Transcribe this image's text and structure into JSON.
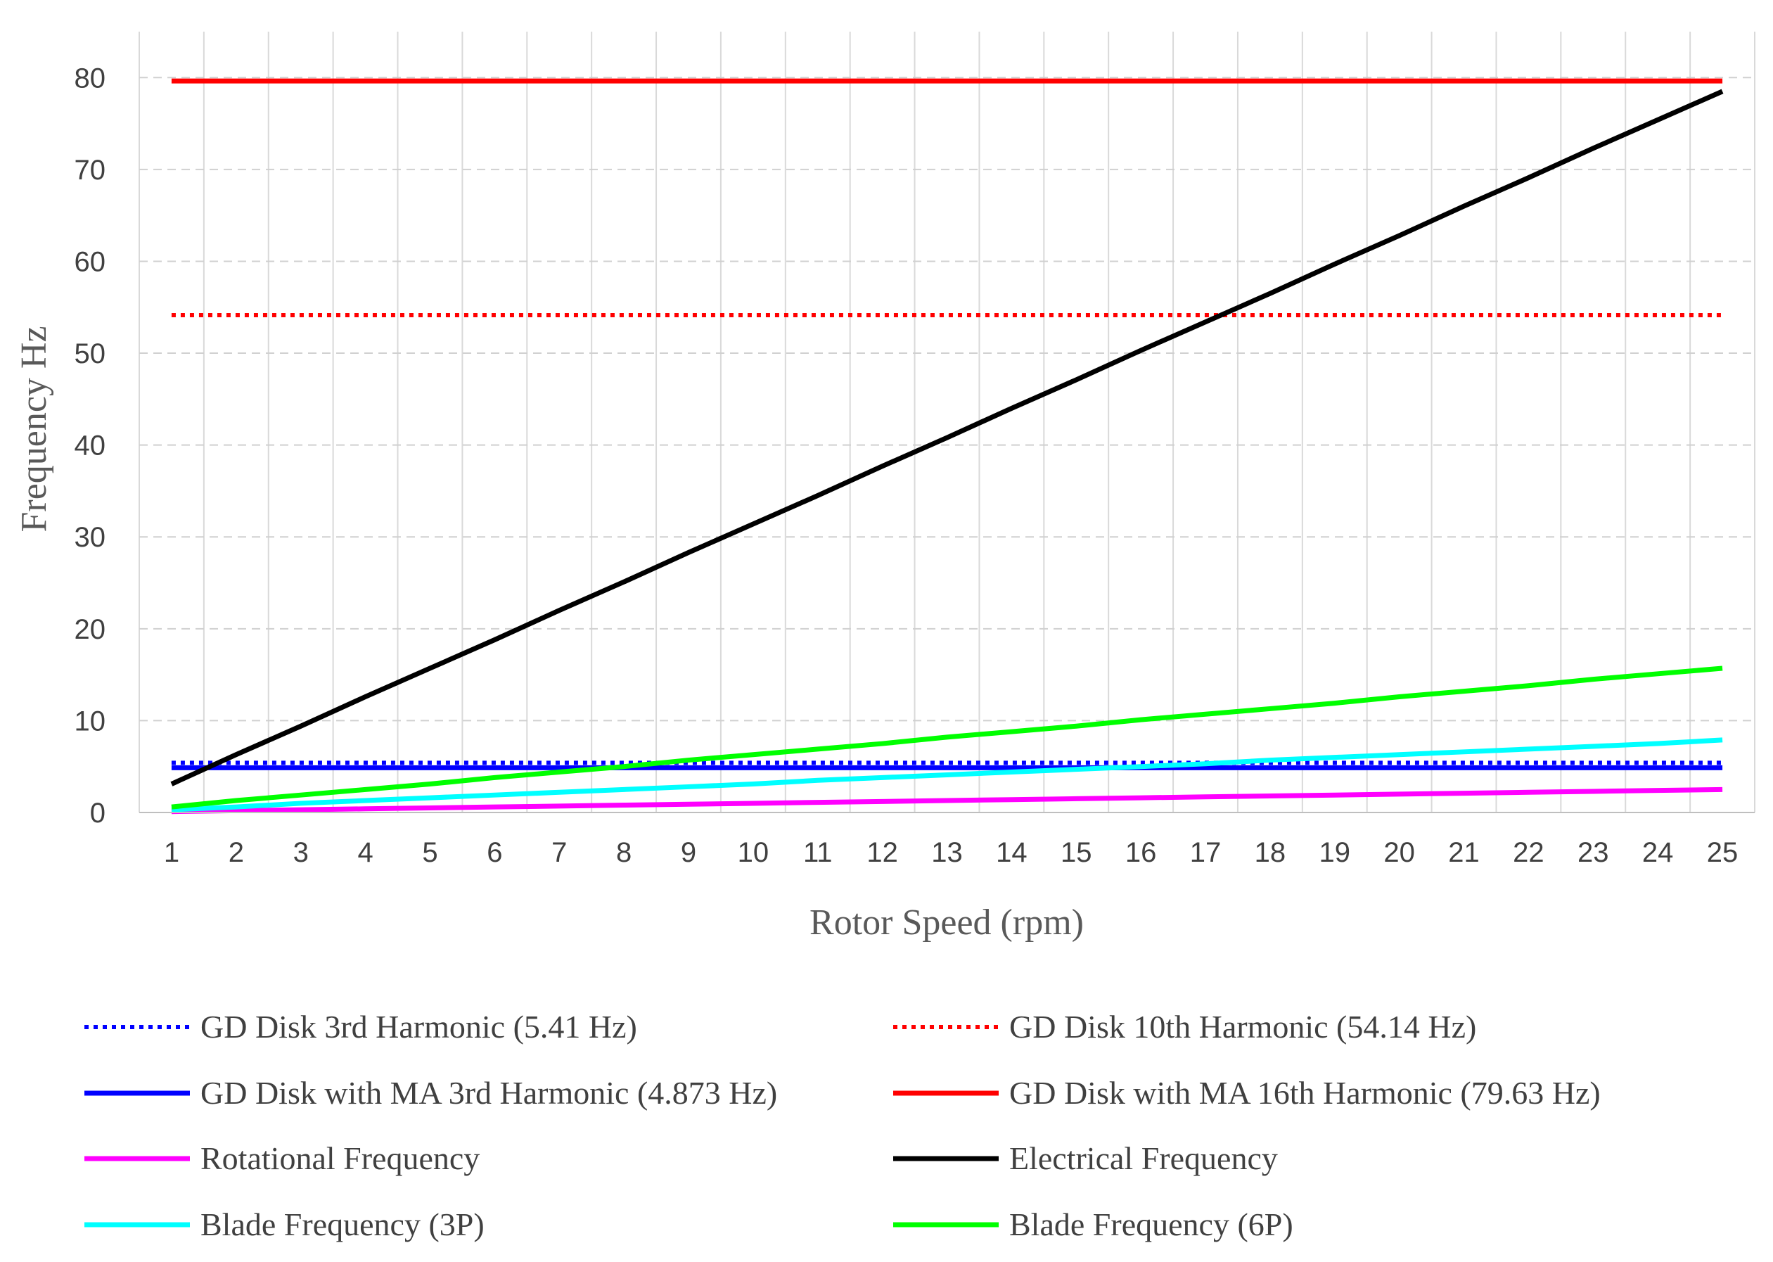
{
  "chart_data": {
    "type": "line",
    "title": "",
    "xlabel": "Rotor Speed (rpm)",
    "ylabel": "Frequency Hz",
    "x": [
      1,
      2,
      3,
      4,
      5,
      6,
      7,
      8,
      9,
      10,
      11,
      12,
      13,
      14,
      15,
      16,
      17,
      18,
      19,
      20,
      21,
      22,
      23,
      24,
      25
    ],
    "x_tick_labels": [
      "1",
      "2",
      "3",
      "4",
      "5",
      "6",
      "7",
      "8",
      "9",
      "10",
      "11",
      "12",
      "13",
      "14",
      "15",
      "16",
      "17",
      "18",
      "19",
      "20",
      "21",
      "22",
      "23",
      "24",
      "25"
    ],
    "ylim": [
      0,
      85
    ],
    "y_ticks": [
      0,
      10,
      20,
      30,
      40,
      50,
      60,
      70,
      80
    ],
    "grid": true,
    "legend_position": "bottom",
    "series": [
      {
        "name": "GD Disk 3rd Harmonic (5.41 Hz)",
        "color": "#0000ff",
        "dash": "dotted",
        "values": [
          5.41,
          5.41,
          5.41,
          5.41,
          5.41,
          5.41,
          5.41,
          5.41,
          5.41,
          5.41,
          5.41,
          5.41,
          5.41,
          5.41,
          5.41,
          5.41,
          5.41,
          5.41,
          5.41,
          5.41,
          5.41,
          5.41,
          5.41,
          5.41,
          5.41
        ]
      },
      {
        "name": "GD Disk 10th Harmonic (54.14 Hz)",
        "color": "#ff0000",
        "dash": "dotted",
        "values": [
          54.14,
          54.14,
          54.14,
          54.14,
          54.14,
          54.14,
          54.14,
          54.14,
          54.14,
          54.14,
          54.14,
          54.14,
          54.14,
          54.14,
          54.14,
          54.14,
          54.14,
          54.14,
          54.14,
          54.14,
          54.14,
          54.14,
          54.14,
          54.14,
          54.14
        ]
      },
      {
        "name": "GD Disk with MA 3rd Harmonic (4.873 Hz)",
        "color": "#0000ff",
        "dash": "solid",
        "values": [
          4.873,
          4.873,
          4.873,
          4.873,
          4.873,
          4.873,
          4.873,
          4.873,
          4.873,
          4.873,
          4.873,
          4.873,
          4.873,
          4.873,
          4.873,
          4.873,
          4.873,
          4.873,
          4.873,
          4.873,
          4.873,
          4.873,
          4.873,
          4.873,
          4.873
        ]
      },
      {
        "name": "GD Disk with MA 16th Harmonic (79.63 Hz)",
        "color": "#ff0000",
        "dash": "solid",
        "values": [
          79.63,
          79.63,
          79.63,
          79.63,
          79.63,
          79.63,
          79.63,
          79.63,
          79.63,
          79.63,
          79.63,
          79.63,
          79.63,
          79.63,
          79.63,
          79.63,
          79.63,
          79.63,
          79.63,
          79.63,
          79.63,
          79.63,
          79.63,
          79.63,
          79.63
        ]
      },
      {
        "name": "Rotational Frequency",
        "color": "#ff00ff",
        "dash": "solid",
        "values": [
          0.1,
          0.2,
          0.3,
          0.4,
          0.5,
          0.6,
          0.7,
          0.8,
          0.9,
          1.0,
          1.1,
          1.2,
          1.3,
          1.4,
          1.5,
          1.6,
          1.7,
          1.8,
          1.9,
          2.0,
          2.1,
          2.2,
          2.3,
          2.4,
          2.5
        ]
      },
      {
        "name": "Electrical Frequency",
        "color": "#000000",
        "dash": "solid",
        "values": [
          3.1,
          6.3,
          9.4,
          12.6,
          15.7,
          18.8,
          22.0,
          25.1,
          28.3,
          31.4,
          34.5,
          37.7,
          40.8,
          44.0,
          47.1,
          50.3,
          53.4,
          56.5,
          59.7,
          62.8,
          66.0,
          69.1,
          72.3,
          75.4,
          78.5
        ]
      },
      {
        "name": "Blade Frequency (3P)",
        "color": "#00ffff",
        "dash": "solid",
        "values": [
          0.3,
          0.6,
          1.0,
          1.3,
          1.6,
          1.9,
          2.2,
          2.5,
          2.8,
          3.1,
          3.5,
          3.8,
          4.1,
          4.4,
          4.7,
          5.0,
          5.3,
          5.7,
          6.0,
          6.3,
          6.6,
          6.9,
          7.2,
          7.5,
          7.9
        ]
      },
      {
        "name": "Blade Frequency (6P)",
        "color": "#00ff00",
        "dash": "solid",
        "values": [
          0.6,
          1.3,
          1.9,
          2.5,
          3.1,
          3.8,
          4.4,
          5.0,
          5.7,
          6.3,
          6.9,
          7.5,
          8.2,
          8.8,
          9.4,
          10.1,
          10.7,
          11.3,
          11.9,
          12.6,
          13.2,
          13.8,
          14.5,
          15.1,
          15.7
        ]
      }
    ],
    "legend_order": [
      0,
      1,
      2,
      3,
      4,
      5,
      6,
      7
    ]
  }
}
